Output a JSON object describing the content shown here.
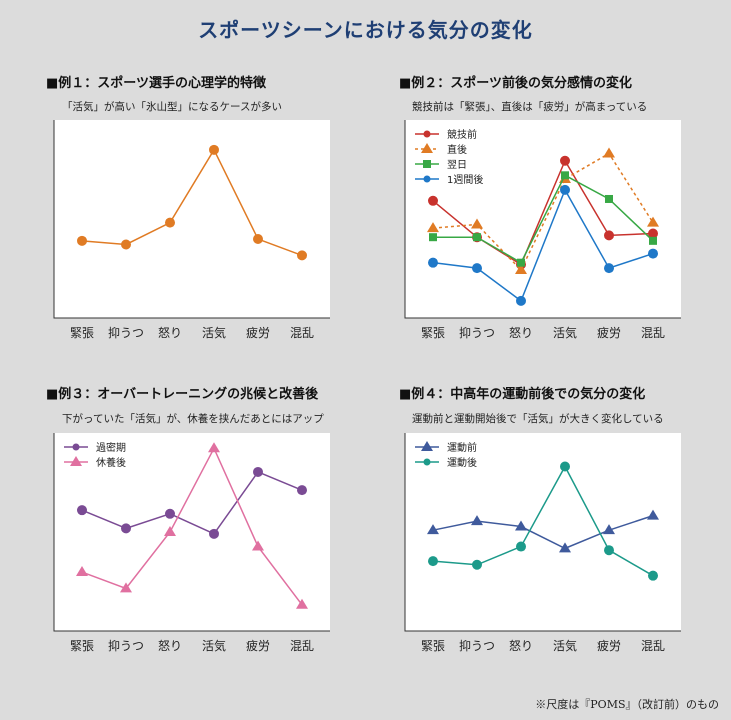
{
  "page": {
    "title": "スポーツシーンにおける気分の変化",
    "footnote": "※尺度は『POMS』（改訂前）のもの"
  },
  "colors": {
    "title": "#1f3f74",
    "orange": "#e07b24",
    "red": "#c8322d",
    "orange_dash": "#e07b24",
    "green": "#38a845",
    "blue": "#1f78c8",
    "purple": "#7a4b94",
    "pink": "#e070a0",
    "navy": "#3f5a9c",
    "teal": "#1c9a8a"
  },
  "panels": [
    {
      "title": "■例１：スポーツ選手の心理学的特徴",
      "subtitle": "「活気」が高い「氷山型」になるケースが多い"
    },
    {
      "title": "■例２：スポーツ前後の気分感情の変化",
      "subtitle": "競技前は「緊張」、直後は「疲労」が高まっている"
    },
    {
      "title": "■例３：オーバートレーニングの兆候と改善後",
      "subtitle": "下がっていた「活気」が、休養を挟んだあとにはアップ"
    },
    {
      "title": "■例４：中高年の運動前後での気分の変化",
      "subtitle": "運動前と運動開始後で「活気」が大きく変化している"
    }
  ],
  "chart_data": [
    {
      "type": "line",
      "categories": [
        "緊張",
        "抑うつ",
        "怒り",
        "活気",
        "疲労",
        "混乱"
      ],
      "ylim": [
        0,
        100
      ],
      "grid": false,
      "legend": "none",
      "series": [
        {
          "color": "#e07b24",
          "marker": "circle",
          "dash": false,
          "values": [
            38,
            36,
            48,
            88,
            39,
            30
          ]
        }
      ]
    },
    {
      "type": "line",
      "categories": [
        "緊張",
        "抑うつ",
        "怒り",
        "活気",
        "疲労",
        "混乱"
      ],
      "ylim": [
        0,
        100
      ],
      "grid": false,
      "legend": "top-left",
      "series": [
        {
          "name": "競技前",
          "color": "#c8322d",
          "marker": "circle",
          "dash": false,
          "values": [
            60,
            40,
            25,
            82,
            41,
            42
          ]
        },
        {
          "name": "直後",
          "color": "#e07b24",
          "marker": "triangle",
          "dash": true,
          "values": [
            45,
            47,
            22,
            72,
            86,
            48
          ]
        },
        {
          "name": "翌日",
          "color": "#38a845",
          "marker": "square",
          "dash": false,
          "values": [
            40,
            40,
            26,
            74,
            61,
            38
          ]
        },
        {
          "name": "1週間後",
          "color": "#1f78c8",
          "marker": "circle",
          "dash": false,
          "values": [
            26,
            23,
            5,
            66,
            23,
            31
          ]
        }
      ]
    },
    {
      "type": "line",
      "categories": [
        "緊張",
        "抑うつ",
        "怒り",
        "活気",
        "疲労",
        "混乱"
      ],
      "ylim": [
        0,
        100
      ],
      "grid": false,
      "legend": "top-left",
      "series": [
        {
          "name": "過密期",
          "color": "#7a4b94",
          "marker": "circle",
          "dash": false,
          "values": [
            62,
            52,
            60,
            49,
            83,
            73
          ]
        },
        {
          "name": "休養後",
          "color": "#e070a0",
          "marker": "triangle",
          "dash": false,
          "values": [
            28,
            19,
            50,
            96,
            42,
            10
          ]
        }
      ]
    },
    {
      "type": "line",
      "categories": [
        "緊張",
        "抑うつ",
        "怒り",
        "活気",
        "疲労",
        "混乱"
      ],
      "ylim": [
        0,
        100
      ],
      "grid": false,
      "legend": "top-left",
      "series": [
        {
          "name": "運動前",
          "color": "#3f5a9c",
          "marker": "triangle",
          "dash": false,
          "values": [
            51,
            56,
            53,
            41,
            51,
            59
          ]
        },
        {
          "name": "運動後",
          "color": "#1c9a8a",
          "marker": "circle",
          "dash": false,
          "values": [
            34,
            32,
            42,
            86,
            40,
            26
          ]
        }
      ]
    }
  ]
}
